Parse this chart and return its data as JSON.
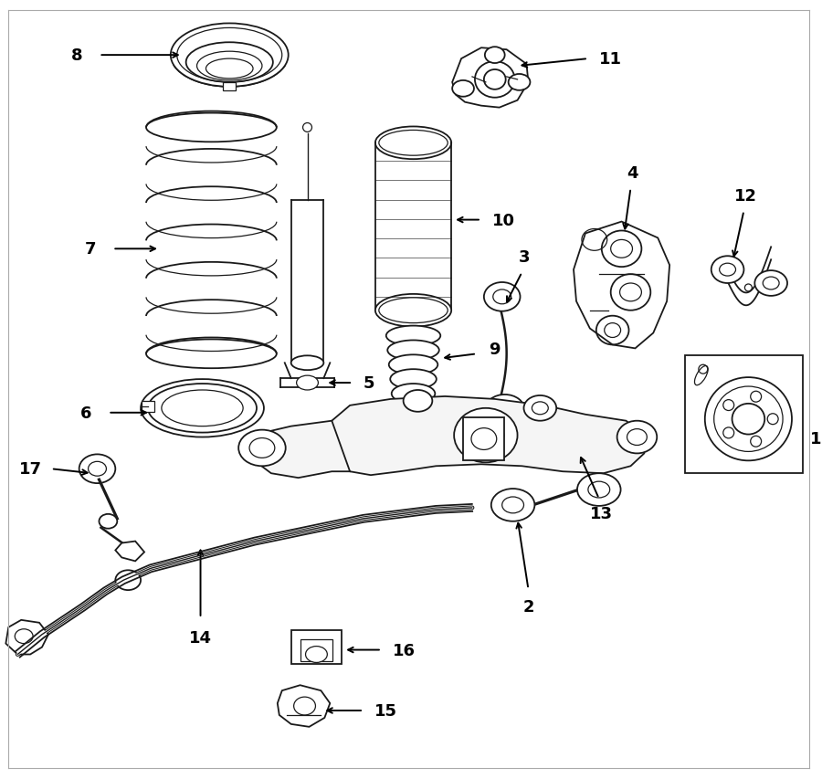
{
  "background_color": "#ffffff",
  "line_color": "#1a1a1a",
  "fig_width": 9.0,
  "fig_height": 8.54,
  "border_color": "#cccccc"
}
